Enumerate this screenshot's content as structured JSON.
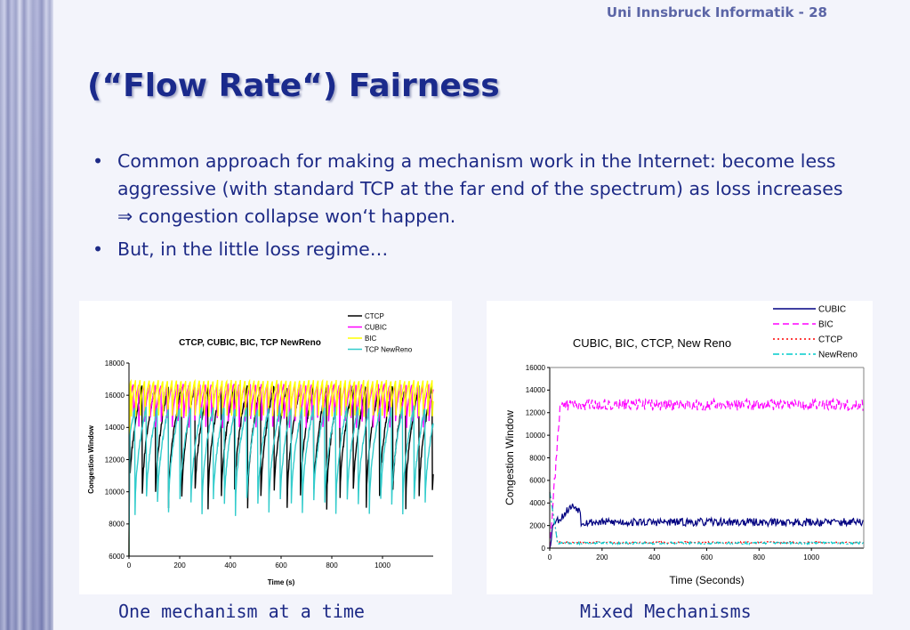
{
  "slide": {
    "header_label": "Uni Innsbruck Informatik - 28",
    "title": "(“Flow Rate“) Fairness",
    "bullets": [
      {
        "line": "Common approach for making a mechanism work in the Internet: become less aggressive (with standard TCP at the far end of the spectrum) as loss increases",
        "implies_symbol": "⇒",
        "implies_text": " congestion collapse won‘t happen."
      },
      {
        "line": "But, in the little loss regime…"
      }
    ],
    "bullet_char": "•",
    "captions": {
      "left": "One mechanism at a time",
      "right": "Mixed Mechanisms"
    }
  },
  "chart_data": [
    {
      "type": "line",
      "title": "CTCP, CUBIC, BIC, TCP NewReno",
      "xlabel": "Time (s)",
      "ylabel": "Congestion Window",
      "xlim": [
        0,
        1200
      ],
      "ylim": [
        6000,
        18000
      ],
      "xticks": [
        0,
        200,
        400,
        600,
        800,
        1000
      ],
      "yticks": [
        6000,
        8000,
        10000,
        12000,
        14000,
        16000,
        18000
      ],
      "legend": "top-right",
      "grid": false,
      "series": [
        {
          "name": "CTCP",
          "color": "#000000",
          "style": "sawtooth",
          "period": 52,
          "phase": 0,
          "low": 9000,
          "high": 16600
        },
        {
          "name": "CUBIC",
          "color": "#ff00ff",
          "style": "sawtooth",
          "period": 22,
          "phase": 5,
          "low": 14000,
          "high": 16700
        },
        {
          "name": "BIC",
          "color": "#ffff00",
          "style": "sawtooth",
          "period": 18,
          "phase": 9,
          "low": 14700,
          "high": 17000
        },
        {
          "name": "TCP NewReno",
          "color": "#33cccc",
          "style": "sawtooth",
          "period": 44,
          "phase": 20,
          "low": 8600,
          "high": 15300
        }
      ]
    },
    {
      "type": "line",
      "title": "CUBIC, BIC, CTCP, New Reno",
      "xlabel": "Time (Seconds)",
      "ylabel": "Congestion Window",
      "xlim": [
        0,
        1200
      ],
      "ylim": [
        0,
        16000
      ],
      "xticks": [
        0,
        200,
        400,
        600,
        800,
        1000
      ],
      "yticks": [
        0,
        2000,
        4000,
        6000,
        8000,
        10000,
        12000,
        14000,
        16000
      ],
      "legend": "top-right",
      "grid": false,
      "series": [
        {
          "name": "CUBIC",
          "color": "#000080",
          "dash": "",
          "base": 2300,
          "noise": 350
        },
        {
          "name": "BIC",
          "color": "#ff00ff",
          "dash": "7,4",
          "base": 12700,
          "noise": 500
        },
        {
          "name": "CTCP",
          "color": "#ff0000",
          "dash": "2,3",
          "base": 500,
          "noise": 80
        },
        {
          "name": "NewReno",
          "color": "#00cccc",
          "dash": "7,3,2,3",
          "base": 450,
          "noise": 100
        }
      ]
    }
  ]
}
